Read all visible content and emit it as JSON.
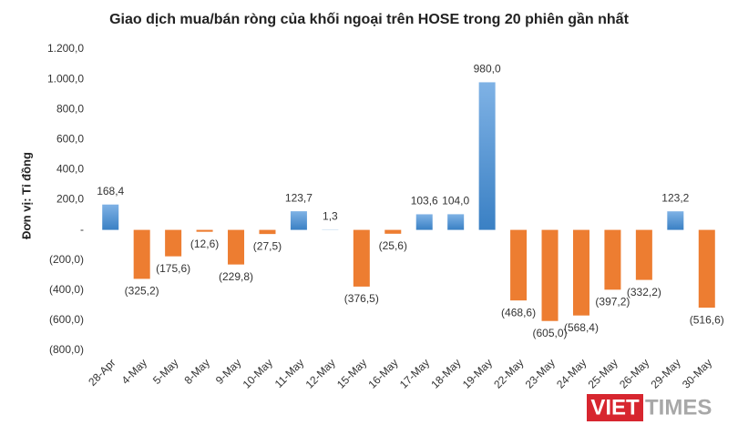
{
  "chart_data": {
    "type": "bar",
    "title": "Giao dịch mua/bán ròng của khối ngoại trên HOSE trong 20 phiên gần nhất",
    "y_axis_label": "Đơn vị: Tỉ đồng",
    "categories": [
      "28-Apr",
      "4-May",
      "5-May",
      "8-May",
      "9-May",
      "10-May",
      "11-May",
      "12-May",
      "15-May",
      "16-May",
      "17-May",
      "18-May",
      "19-May",
      "22-May",
      "23-May",
      "24-May",
      "25-May",
      "26-May",
      "29-May",
      "30-May"
    ],
    "values": [
      168.4,
      -325.2,
      -175.6,
      -12.6,
      -229.8,
      -27.5,
      123.7,
      1.3,
      -376.5,
      -25.6,
      103.6,
      104.0,
      980.0,
      -468.6,
      -605.0,
      -568.4,
      -397.2,
      -332.2,
      123.2,
      -516.6
    ],
    "value_labels": [
      "168,4",
      "(325,2)",
      "(175,6)",
      "(12,6)",
      "(229,8)",
      "(27,5)",
      "123,7",
      "1,3",
      "(376,5)",
      "(25,6)",
      "103,6",
      "104,0",
      "980,0",
      "(468,6)",
      "(605,0)",
      "(568,4)",
      "(397,2)",
      "(332,2)",
      "123,2",
      "(516,6)"
    ],
    "positive_color": "#5b9bd5",
    "negative_color": "#ed7d31",
    "ylim": [
      -800,
      1200
    ],
    "yticks": [
      {
        "value": -800,
        "label": "(800,0)"
      },
      {
        "value": -600,
        "label": "(600,0)"
      },
      {
        "value": -400,
        "label": "(400,0)"
      },
      {
        "value": -200,
        "label": "(200,0)"
      },
      {
        "value": 0,
        "label": "-"
      },
      {
        "value": 200,
        "label": "200,0"
      },
      {
        "value": 400,
        "label": "400,0"
      },
      {
        "value": 600,
        "label": "600,0"
      },
      {
        "value": 800,
        "label": "800,0"
      },
      {
        "value": 1000,
        "label": "1.000,0"
      },
      {
        "value": 1200,
        "label": "1.200,0"
      }
    ],
    "grid": false,
    "watermark": [
      "VIET",
      "TIMES"
    ]
  }
}
